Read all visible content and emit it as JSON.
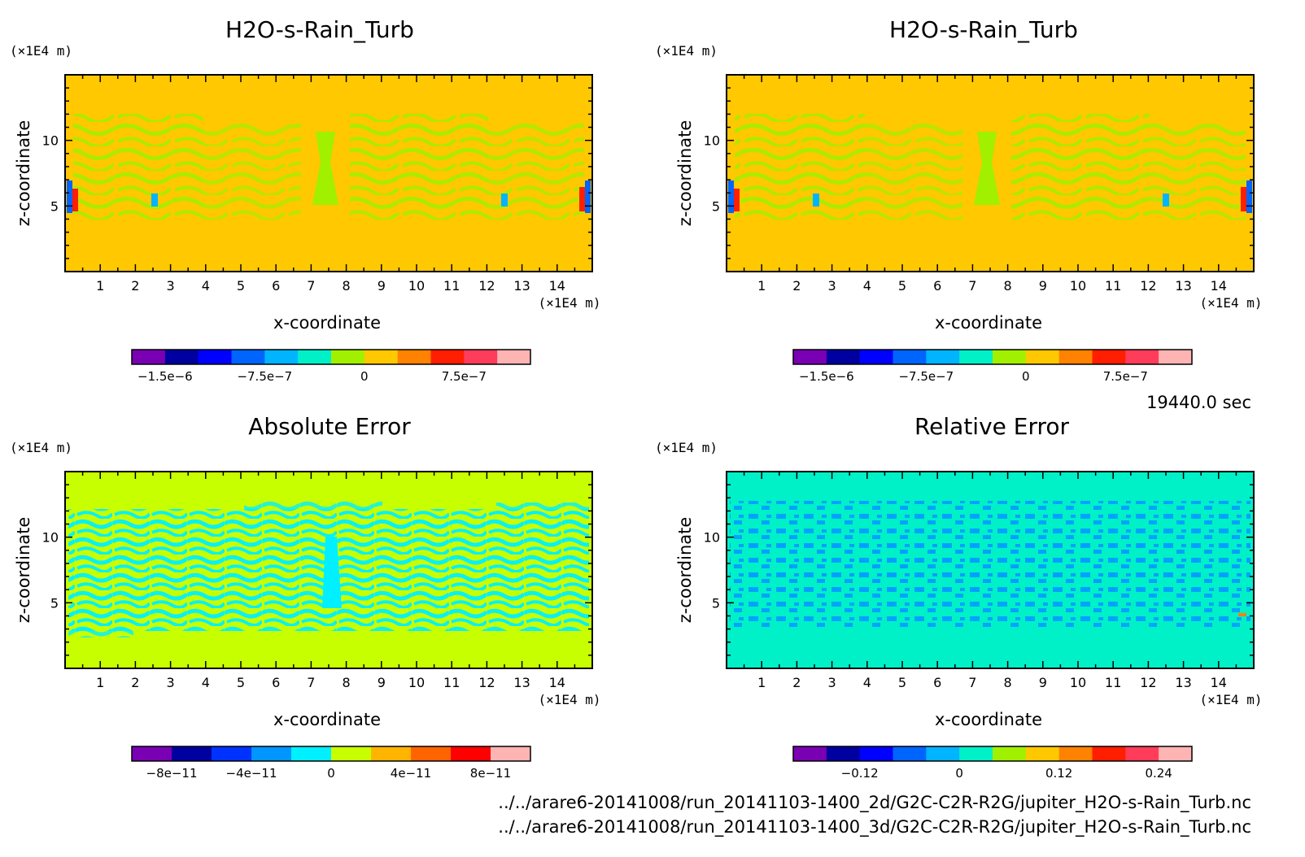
{
  "figure": {
    "timestamp": "19440.0 sec",
    "files": [
      "../../arare6-20141008/run_20141103-1400_2d/G2C-C2R-R2G/jupiter_H2O-s-Rain_Turb.nc",
      "../../arare6-20141008/run_20141103-1400_3d/G2C-C2R-R2G/jupiter_H2O-s-Rain_Turb.nc"
    ]
  },
  "chart_data": [
    {
      "type": "heatmap",
      "title": "H2O-s-Rain_Turb",
      "xlabel": "x-coordinate",
      "ylabel": "z-coordinate",
      "x_unit": "(×1E4 m)",
      "z_unit": "(×1E4 m)",
      "xlim": [
        0,
        15
      ],
      "zlim": [
        0,
        15
      ],
      "x_ticks": [
        "1",
        "2",
        "3",
        "4",
        "5",
        "6",
        "7",
        "8",
        "9",
        "10",
        "11",
        "12",
        "13",
        "14"
      ],
      "z_ticks": [
        "5",
        "10"
      ],
      "background_color": "#ffc800",
      "pattern_color": "#a0f000",
      "colorbar": {
        "colors": [
          "#7a00b4",
          "#0000a0",
          "#0000ff",
          "#0064ff",
          "#00b4ff",
          "#00f0c8",
          "#a0f000",
          "#ffc800",
          "#ff8200",
          "#ff1e00",
          "#ff3c5a",
          "#ffb4b4"
        ],
        "labels": [
          "−1.5e−6",
          "−7.5e−7",
          "0",
          "7.5e−7"
        ],
        "label_boundary_index": [
          1,
          4,
          7,
          10
        ]
      }
    },
    {
      "type": "heatmap",
      "title": "H2O-s-Rain_Turb",
      "xlabel": "x-coordinate",
      "ylabel": "z-coordinate",
      "x_unit": "(×1E4 m)",
      "z_unit": "(×1E4 m)",
      "xlim": [
        0,
        15
      ],
      "zlim": [
        0,
        15
      ],
      "x_ticks": [
        "1",
        "2",
        "3",
        "4",
        "5",
        "6",
        "7",
        "8",
        "9",
        "10",
        "11",
        "12",
        "13",
        "14"
      ],
      "z_ticks": [
        "5",
        "10"
      ],
      "background_color": "#ffc800",
      "pattern_color": "#a0f000",
      "colorbar": {
        "colors": [
          "#7a00b4",
          "#0000a0",
          "#0000ff",
          "#0064ff",
          "#00b4ff",
          "#00f0c8",
          "#a0f000",
          "#ffc800",
          "#ff8200",
          "#ff1e00",
          "#ff3c5a",
          "#ffb4b4"
        ],
        "labels": [
          "−1.5e−6",
          "−7.5e−7",
          "0",
          "7.5e−7"
        ],
        "label_boundary_index": [
          1,
          4,
          7,
          10
        ]
      }
    },
    {
      "type": "heatmap",
      "title": "Absolute Error",
      "xlabel": "x-coordinate",
      "ylabel": "z-coordinate",
      "x_unit": "(×1E4 m)",
      "z_unit": "(×1E4 m)",
      "xlim": [
        0,
        15
      ],
      "zlim": [
        0,
        15
      ],
      "x_ticks": [
        "1",
        "2",
        "3",
        "4",
        "5",
        "6",
        "7",
        "8",
        "9",
        "10",
        "11",
        "12",
        "13",
        "14"
      ],
      "z_ticks": [
        "5",
        "10"
      ],
      "background_color": "#c8ff00",
      "pattern_color": "#00f0ff",
      "colorbar": {
        "colors": [
          "#7a00b4",
          "#0000a0",
          "#0032ff",
          "#0096ff",
          "#00f0ff",
          "#c8ff00",
          "#ffb400",
          "#ff6400",
          "#ff0000",
          "#ffb4b4"
        ],
        "labels": [
          "−8e−11",
          "−4e−11",
          "0",
          "4e−11",
          "8e−11"
        ],
        "label_boundary_index": [
          1,
          3,
          5,
          7,
          9
        ]
      }
    },
    {
      "type": "heatmap",
      "title": "Relative Error",
      "xlabel": "x-coordinate",
      "ylabel": "z-coordinate",
      "x_unit": "(×1E4 m)",
      "z_unit": "(×1E4 m)",
      "xlim": [
        0,
        15
      ],
      "zlim": [
        0,
        15
      ],
      "x_ticks": [
        "1",
        "2",
        "3",
        "4",
        "5",
        "6",
        "7",
        "8",
        "9",
        "10",
        "11",
        "12",
        "13",
        "14"
      ],
      "z_ticks": [
        "5",
        "10"
      ],
      "background_color": "#00f0c8",
      "pattern_color": "#00a0ff",
      "colorbar": {
        "colors": [
          "#7a00b4",
          "#0000a0",
          "#0000ff",
          "#0064ff",
          "#00b4ff",
          "#00f0c8",
          "#a0f000",
          "#ffc800",
          "#ff8200",
          "#ff1e00",
          "#ff3c5a",
          "#ffb4b4"
        ],
        "labels": [
          "−0.12",
          "0",
          "0.12",
          "0.24"
        ],
        "label_boundary_index": [
          2,
          5,
          8,
          11
        ]
      }
    }
  ]
}
